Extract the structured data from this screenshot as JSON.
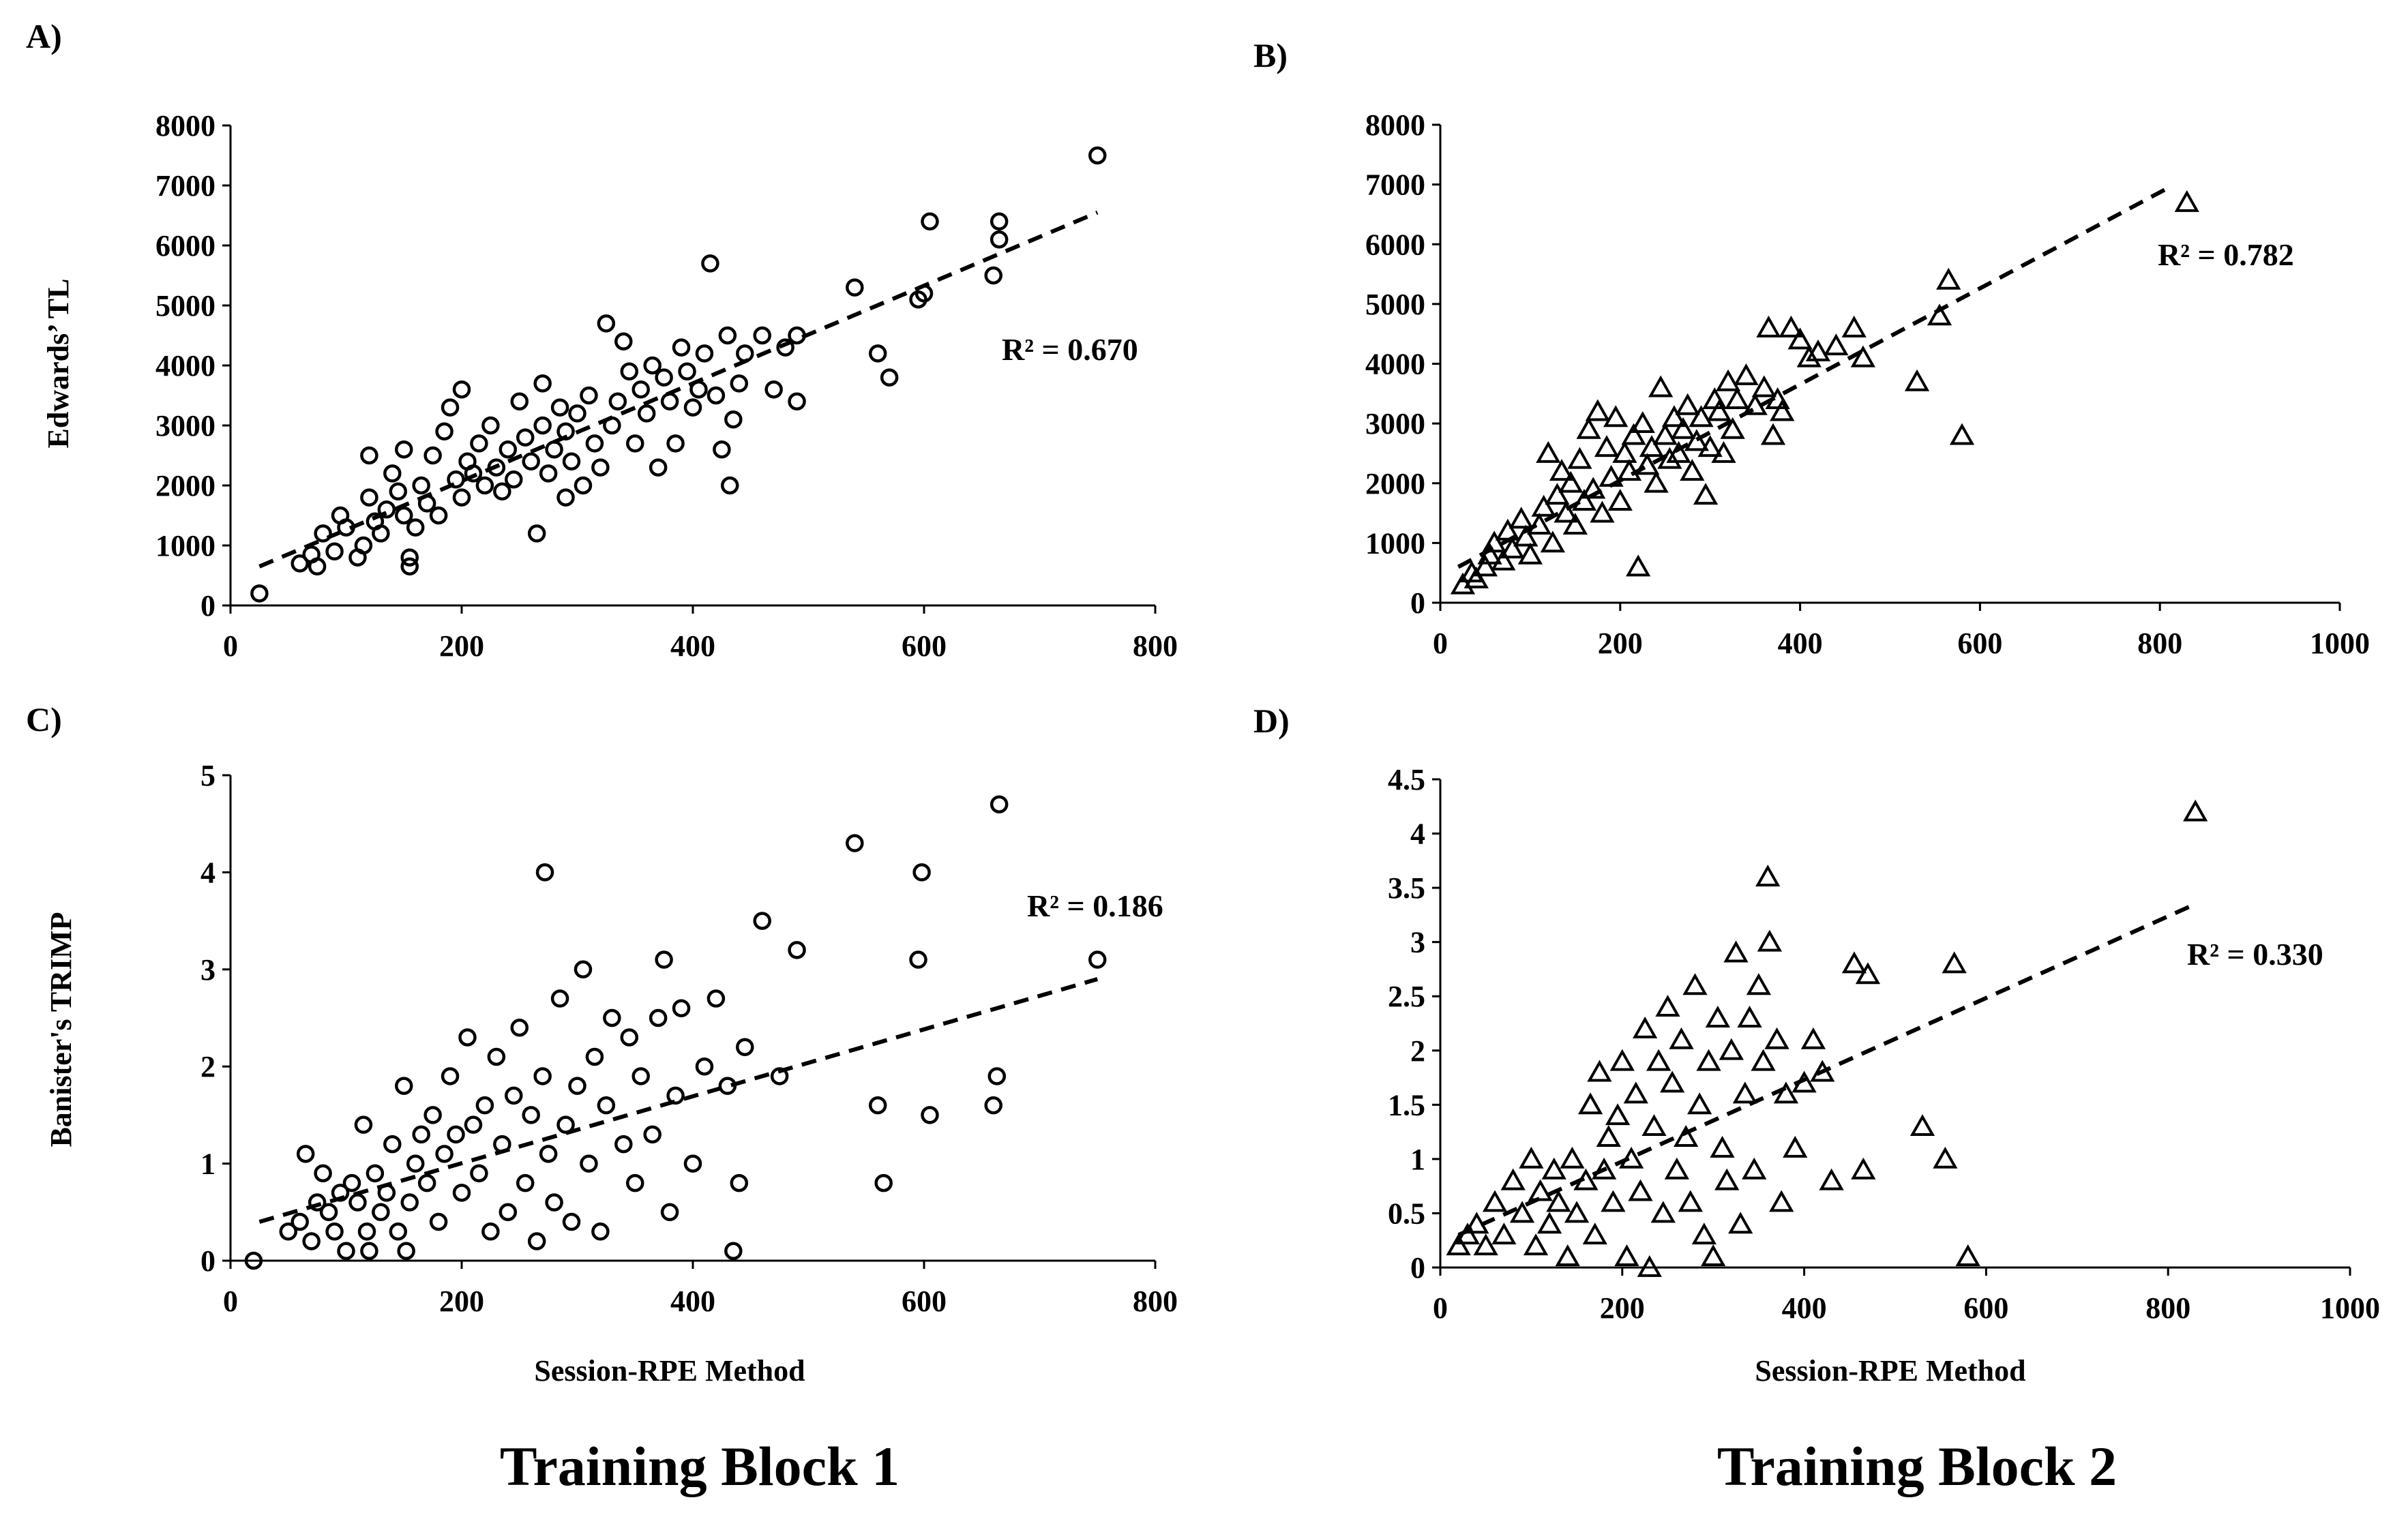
{
  "chart_data": [
    {
      "id": "A",
      "panel_label": "A)",
      "type": "scatter",
      "xlabel": "",
      "ylabel": "Edwards’ TL",
      "xlim": [
        0,
        800
      ],
      "ylim": [
        0,
        8000
      ],
      "xticks": [
        "0",
        "200",
        "400",
        "600",
        "800"
      ],
      "yticks": [
        "0",
        "1000",
        "2000",
        "3000",
        "4000",
        "5000",
        "6000",
        "7000",
        "8000"
      ],
      "marker": "circle",
      "r2_label": "R² = 0.670",
      "trend": {
        "x1": 25,
        "y1": 650,
        "x2": 750,
        "y2": 6550
      },
      "points": [
        [
          25,
          200
        ],
        [
          60,
          700
        ],
        [
          70,
          850
        ],
        [
          75,
          650
        ],
        [
          80,
          1200
        ],
        [
          90,
          900
        ],
        [
          95,
          1500
        ],
        [
          100,
          1300
        ],
        [
          110,
          800
        ],
        [
          115,
          1000
        ],
        [
          120,
          1800
        ],
        [
          120,
          2500
        ],
        [
          125,
          1400
        ],
        [
          130,
          1200
        ],
        [
          135,
          1600
        ],
        [
          140,
          2200
        ],
        [
          145,
          1900
        ],
        [
          150,
          2600
        ],
        [
          150,
          1500
        ],
        [
          155,
          800
        ],
        [
          155,
          650
        ],
        [
          160,
          1300
        ],
        [
          165,
          2000
        ],
        [
          170,
          1700
        ],
        [
          175,
          2500
        ],
        [
          180,
          1500
        ],
        [
          185,
          2900
        ],
        [
          190,
          3300
        ],
        [
          195,
          2100
        ],
        [
          200,
          1800
        ],
        [
          200,
          3600
        ],
        [
          205,
          2400
        ],
        [
          210,
          2200
        ],
        [
          215,
          2700
        ],
        [
          220,
          2000
        ],
        [
          225,
          3000
        ],
        [
          230,
          2300
        ],
        [
          235,
          1900
        ],
        [
          240,
          2600
        ],
        [
          245,
          2100
        ],
        [
          250,
          3400
        ],
        [
          255,
          2800
        ],
        [
          260,
          2400
        ],
        [
          265,
          1200
        ],
        [
          270,
          3000
        ],
        [
          270,
          3700
        ],
        [
          275,
          2200
        ],
        [
          280,
          2600
        ],
        [
          285,
          3300
        ],
        [
          290,
          1800
        ],
        [
          290,
          2900
        ],
        [
          295,
          2400
        ],
        [
          300,
          3200
        ],
        [
          305,
          2000
        ],
        [
          310,
          3500
        ],
        [
          315,
          2700
        ],
        [
          320,
          2300
        ],
        [
          325,
          4700
        ],
        [
          330,
          3000
        ],
        [
          335,
          3400
        ],
        [
          340,
          4400
        ],
        [
          345,
          3900
        ],
        [
          350,
          2700
        ],
        [
          355,
          3600
        ],
        [
          360,
          3200
        ],
        [
          365,
          4000
        ],
        [
          370,
          2300
        ],
        [
          375,
          3800
        ],
        [
          380,
          3400
        ],
        [
          385,
          2700
        ],
        [
          390,
          4300
        ],
        [
          395,
          3900
        ],
        [
          400,
          3300
        ],
        [
          405,
          3600
        ],
        [
          410,
          4200
        ],
        [
          415,
          5700
        ],
        [
          420,
          3500
        ],
        [
          425,
          2600
        ],
        [
          430,
          4500
        ],
        [
          432,
          2000
        ],
        [
          435,
          3100
        ],
        [
          440,
          3700
        ],
        [
          445,
          4200
        ],
        [
          460,
          4500
        ],
        [
          470,
          3600
        ],
        [
          480,
          4300
        ],
        [
          490,
          3400
        ],
        [
          490,
          4500
        ],
        [
          540,
          5300
        ],
        [
          560,
          4200
        ],
        [
          570,
          3800
        ],
        [
          595,
          5100
        ],
        [
          600,
          5200
        ],
        [
          605,
          6400
        ],
        [
          660,
          5500
        ],
        [
          665,
          6100
        ],
        [
          665,
          6400
        ],
        [
          750,
          7500
        ]
      ]
    },
    {
      "id": "B",
      "panel_label": "B)",
      "type": "scatter",
      "xlabel": "",
      "ylabel": "",
      "xlim": [
        0,
        1000
      ],
      "ylim": [
        0,
        8000
      ],
      "xticks": [
        "0",
        "200",
        "400",
        "600",
        "800",
        "1000"
      ],
      "yticks": [
        "0",
        "1000",
        "2000",
        "3000",
        "4000",
        "5000",
        "6000",
        "7000",
        "8000"
      ],
      "marker": "triangle",
      "r2_label": "R² = 0.782",
      "trend": {
        "x1": 20,
        "y1": 600,
        "x2": 810,
        "y2": 6950
      },
      "points": [
        [
          25,
          300
        ],
        [
          35,
          500
        ],
        [
          40,
          400
        ],
        [
          50,
          600
        ],
        [
          55,
          800
        ],
        [
          60,
          1000
        ],
        [
          70,
          700
        ],
        [
          75,
          1200
        ],
        [
          80,
          900
        ],
        [
          90,
          1400
        ],
        [
          95,
          1100
        ],
        [
          100,
          800
        ],
        [
          110,
          1300
        ],
        [
          115,
          1600
        ],
        [
          120,
          2500
        ],
        [
          125,
          1000
        ],
        [
          130,
          1800
        ],
        [
          135,
          2200
        ],
        [
          140,
          1500
        ],
        [
          145,
          2000
        ],
        [
          150,
          1300
        ],
        [
          155,
          2400
        ],
        [
          160,
          1700
        ],
        [
          165,
          2900
        ],
        [
          170,
          1900
        ],
        [
          175,
          3200
        ],
        [
          180,
          1500
        ],
        [
          185,
          2600
        ],
        [
          190,
          2100
        ],
        [
          195,
          3100
        ],
        [
          200,
          1700
        ],
        [
          205,
          2500
        ],
        [
          210,
          2200
        ],
        [
          215,
          2800
        ],
        [
          220,
          600
        ],
        [
          225,
          3000
        ],
        [
          230,
          2300
        ],
        [
          235,
          2600
        ],
        [
          240,
          2000
        ],
        [
          245,
          3600
        ],
        [
          250,
          2800
        ],
        [
          255,
          2400
        ],
        [
          260,
          3100
        ],
        [
          265,
          2500
        ],
        [
          270,
          2900
        ],
        [
          275,
          3300
        ],
        [
          280,
          2200
        ],
        [
          285,
          2700
        ],
        [
          290,
          3100
        ],
        [
          295,
          1800
        ],
        [
          300,
          2600
        ],
        [
          305,
          3400
        ],
        [
          310,
          3200
        ],
        [
          315,
          2500
        ],
        [
          320,
          3700
        ],
        [
          325,
          2900
        ],
        [
          330,
          3400
        ],
        [
          340,
          3800
        ],
        [
          350,
          3300
        ],
        [
          360,
          3600
        ],
        [
          365,
          4600
        ],
        [
          370,
          2800
        ],
        [
          375,
          3400
        ],
        [
          380,
          3200
        ],
        [
          390,
          4600
        ],
        [
          400,
          4400
        ],
        [
          410,
          4100
        ],
        [
          420,
          4200
        ],
        [
          440,
          4300
        ],
        [
          460,
          4600
        ],
        [
          470,
          4100
        ],
        [
          530,
          3700
        ],
        [
          555,
          4800
        ],
        [
          565,
          5400
        ],
        [
          580,
          2800
        ],
        [
          830,
          6700
        ]
      ]
    },
    {
      "id": "C",
      "panel_label": "C)",
      "type": "scatter",
      "xlabel": "Session-RPE Method",
      "ylabel": "Banister's TRIMP",
      "xlim": [
        0,
        800
      ],
      "ylim": [
        0,
        5
      ],
      "xticks": [
        "0",
        "200",
        "400",
        "600",
        "800"
      ],
      "yticks": [
        "0",
        "1",
        "2",
        "3",
        "4",
        "5"
      ],
      "marker": "circle",
      "r2_label": "R² = 0.186",
      "trend": {
        "x1": 25,
        "y1": 0.4,
        "x2": 750,
        "y2": 2.9
      },
      "points": [
        [
          20,
          0
        ],
        [
          50,
          0.3
        ],
        [
          60,
          0.4
        ],
        [
          65,
          1.1
        ],
        [
          70,
          0.2
        ],
        [
          75,
          0.6
        ],
        [
          80,
          0.9
        ],
        [
          85,
          0.5
        ],
        [
          90,
          0.3
        ],
        [
          95,
          0.7
        ],
        [
          100,
          0.1
        ],
        [
          105,
          0.8
        ],
        [
          110,
          0.6
        ],
        [
          115,
          1.4
        ],
        [
          118,
          0.3
        ],
        [
          120,
          0.1
        ],
        [
          125,
          0.9
        ],
        [
          130,
          0.5
        ],
        [
          135,
          0.7
        ],
        [
          140,
          1.2
        ],
        [
          145,
          0.3
        ],
        [
          150,
          1.8
        ],
        [
          152,
          0.1
        ],
        [
          155,
          0.6
        ],
        [
          160,
          1.0
        ],
        [
          165,
          1.3
        ],
        [
          170,
          0.8
        ],
        [
          175,
          1.5
        ],
        [
          180,
          0.4
        ],
        [
          185,
          1.1
        ],
        [
          190,
          1.9
        ],
        [
          195,
          1.3
        ],
        [
          200,
          0.7
        ],
        [
          205,
          2.3
        ],
        [
          210,
          1.4
        ],
        [
          215,
          0.9
        ],
        [
          220,
          1.6
        ],
        [
          225,
          0.3
        ],
        [
          230,
          2.1
        ],
        [
          235,
          1.2
        ],
        [
          240,
          0.5
        ],
        [
          245,
          1.7
        ],
        [
          250,
          2.4
        ],
        [
          255,
          0.8
        ],
        [
          260,
          1.5
        ],
        [
          265,
          0.2
        ],
        [
          270,
          1.9
        ],
        [
          272,
          4.0
        ],
        [
          275,
          1.1
        ],
        [
          280,
          0.6
        ],
        [
          285,
          2.7
        ],
        [
          290,
          1.4
        ],
        [
          295,
          0.4
        ],
        [
          300,
          1.8
        ],
        [
          305,
          3.0
        ],
        [
          310,
          1.0
        ],
        [
          315,
          2.1
        ],
        [
          320,
          0.3
        ],
        [
          325,
          1.6
        ],
        [
          330,
          2.5
        ],
        [
          340,
          1.2
        ],
        [
          345,
          2.3
        ],
        [
          350,
          0.8
        ],
        [
          355,
          1.9
        ],
        [
          365,
          1.3
        ],
        [
          370,
          2.5
        ],
        [
          375,
          3.1
        ],
        [
          380,
          0.5
        ],
        [
          385,
          1.7
        ],
        [
          390,
          2.6
        ],
        [
          400,
          1.0
        ],
        [
          410,
          2.0
        ],
        [
          420,
          2.7
        ],
        [
          430,
          1.8
        ],
        [
          435,
          0.1
        ],
        [
          440,
          0.8
        ],
        [
          445,
          2.2
        ],
        [
          460,
          3.5
        ],
        [
          475,
          1.9
        ],
        [
          490,
          3.2
        ],
        [
          540,
          4.3
        ],
        [
          560,
          1.6
        ],
        [
          565,
          0.8
        ],
        [
          595,
          3.1
        ],
        [
          598,
          4.0
        ],
        [
          605,
          1.5
        ],
        [
          660,
          1.6
        ],
        [
          663,
          1.9
        ],
        [
          665,
          4.7
        ],
        [
          750,
          3.1
        ]
      ]
    },
    {
      "id": "D",
      "panel_label": "D)",
      "type": "scatter",
      "xlabel": "Session-RPE Method",
      "ylabel": "",
      "xlim": [
        0,
        1000
      ],
      "ylim": [
        0,
        4.5
      ],
      "xticks": [
        "0",
        "200",
        "400",
        "600",
        "800",
        "1000"
      ],
      "yticks": [
        "0",
        "0.5",
        "1",
        "1.5",
        "2",
        "2.5",
        "3",
        "3.5",
        "4",
        "4.5"
      ],
      "marker": "triangle",
      "r2_label": "R² = 0.330",
      "trend": {
        "x1": 20,
        "y1": 0.3,
        "x2": 830,
        "y2": 3.35
      },
      "points": [
        [
          20,
          0.2
        ],
        [
          30,
          0.3
        ],
        [
          40,
          0.4
        ],
        [
          50,
          0.2
        ],
        [
          60,
          0.6
        ],
        [
          70,
          0.3
        ],
        [
          80,
          0.8
        ],
        [
          90,
          0.5
        ],
        [
          100,
          1.0
        ],
        [
          105,
          0.2
        ],
        [
          110,
          0.7
        ],
        [
          120,
          0.4
        ],
        [
          125,
          0.9
        ],
        [
          130,
          0.6
        ],
        [
          140,
          0.1
        ],
        [
          145,
          1.0
        ],
        [
          150,
          0.5
        ],
        [
          160,
          0.8
        ],
        [
          165,
          1.5
        ],
        [
          170,
          0.3
        ],
        [
          175,
          1.8
        ],
        [
          180,
          0.9
        ],
        [
          185,
          1.2
        ],
        [
          190,
          0.6
        ],
        [
          195,
          1.4
        ],
        [
          200,
          1.9
        ],
        [
          205,
          0.1
        ],
        [
          210,
          1.0
        ],
        [
          215,
          1.6
        ],
        [
          220,
          0.7
        ],
        [
          225,
          2.2
        ],
        [
          230,
          0.0
        ],
        [
          235,
          1.3
        ],
        [
          240,
          1.9
        ],
        [
          245,
          0.5
        ],
        [
          250,
          2.4
        ],
        [
          255,
          1.7
        ],
        [
          260,
          0.9
        ],
        [
          265,
          2.1
        ],
        [
          270,
          1.2
        ],
        [
          275,
          0.6
        ],
        [
          280,
          2.6
        ],
        [
          285,
          1.5
        ],
        [
          290,
          0.3
        ],
        [
          295,
          1.9
        ],
        [
          300,
          0.1
        ],
        [
          305,
          2.3
        ],
        [
          310,
          1.1
        ],
        [
          315,
          0.8
        ],
        [
          320,
          2.0
        ],
        [
          325,
          2.9
        ],
        [
          330,
          0.4
        ],
        [
          335,
          1.6
        ],
        [
          340,
          2.3
        ],
        [
          345,
          0.9
        ],
        [
          350,
          2.6
        ],
        [
          355,
          1.9
        ],
        [
          360,
          3.6
        ],
        [
          362,
          3.0
        ],
        [
          370,
          2.1
        ],
        [
          375,
          0.6
        ],
        [
          380,
          1.6
        ],
        [
          390,
          1.1
        ],
        [
          400,
          1.7
        ],
        [
          410,
          2.1
        ],
        [
          420,
          1.8
        ],
        [
          430,
          0.8
        ],
        [
          455,
          2.8
        ],
        [
          465,
          0.9
        ],
        [
          470,
          2.7
        ],
        [
          530,
          1.3
        ],
        [
          555,
          1.0
        ],
        [
          565,
          2.8
        ],
        [
          580,
          0.1
        ],
        [
          830,
          4.2
        ]
      ]
    }
  ],
  "block_titles": [
    "Training Block 1",
    "Training Block 2"
  ]
}
